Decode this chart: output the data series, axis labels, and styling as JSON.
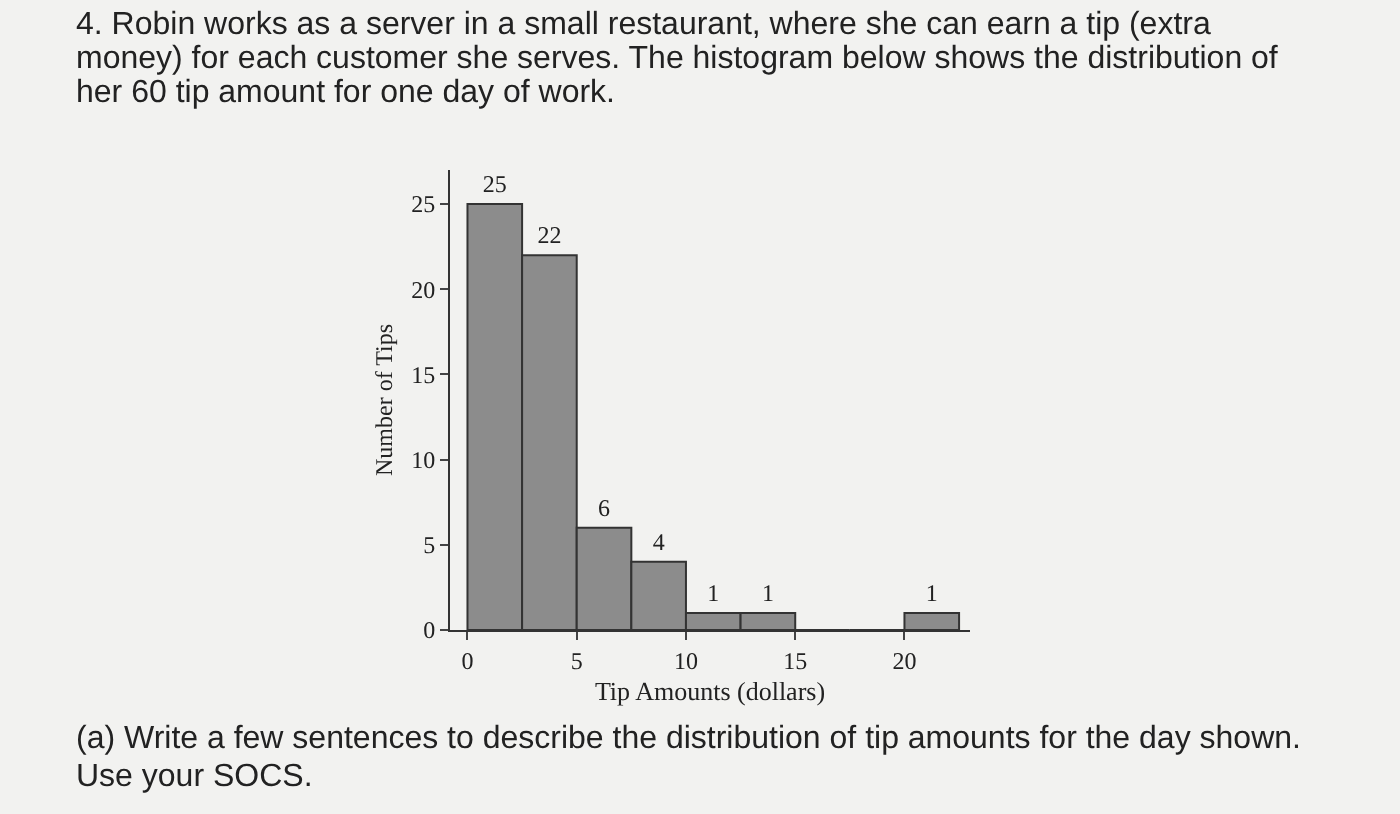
{
  "chart_data": {
    "type": "histogram",
    "title": "4. Robin works as a server in a small restaurant, where she can earn a tip (extra money) for each customer she serves. The histogram below shows the distribution of her 60 tip amount for one day of work.",
    "xlabel": "Tip Amounts (dollars)",
    "ylabel": "Number of Tips",
    "bins": [
      0,
      2.5,
      5,
      7.5,
      10,
      12.5,
      15,
      17.5,
      20,
      22.5
    ],
    "values": [
      25,
      22,
      6,
      4,
      1,
      1,
      0,
      0,
      1
    ],
    "value_labels": [
      "25",
      "22",
      "6",
      "4",
      "1",
      "1",
      null,
      null,
      "1"
    ],
    "color": "#8c8c8c",
    "xlim": [
      -0.8,
      23
    ],
    "xticks": [
      0,
      5,
      10,
      15,
      20
    ],
    "ylim": [
      0,
      27
    ],
    "yticks": [
      0,
      5,
      10,
      15,
      20,
      25
    ],
    "annotations": [
      "(a) Write a few sentences to describe the distribution of tip amounts for the day shown. Use your SOCS."
    ]
  }
}
